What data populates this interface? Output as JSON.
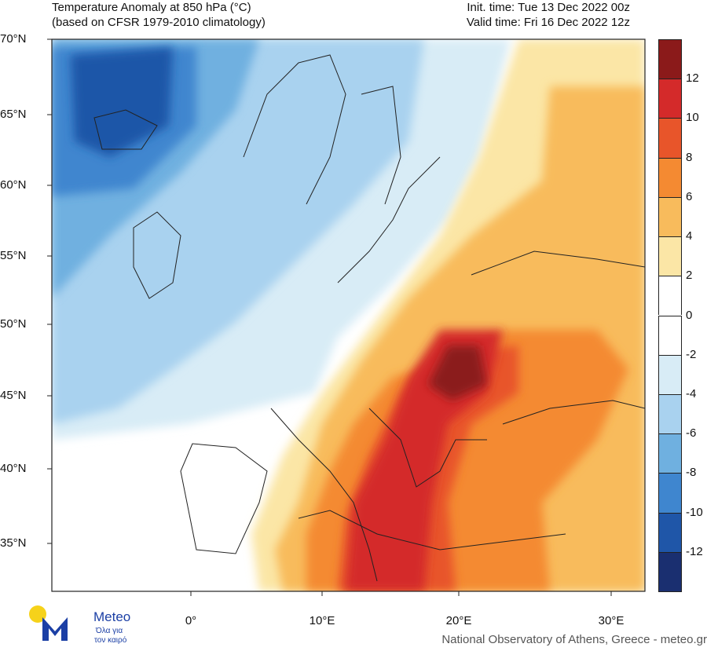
{
  "header": {
    "title_line1": "Temperature Anomaly at 850 hPa (°C)",
    "title_line2": "(based on CFSR 1979-2010 climatology)",
    "init_time": "Init. time: Tue 13 Dec 2022 00z",
    "valid_time": "Valid time: Fri 16 Dec 2022 12z"
  },
  "map": {
    "lat_labels": [
      "70°N",
      "65°N",
      "60°N",
      "55°N",
      "50°N",
      "45°N",
      "40°N",
      "35°N"
    ],
    "lon_labels": [
      "0°",
      "10°E",
      "20°E",
      "30°E"
    ]
  },
  "colorbar": {
    "labels": [
      "12",
      "10",
      "8",
      "6",
      "4",
      "2",
      "0",
      "-2",
      "-4",
      "-6",
      "-8",
      "-10",
      "-12"
    ],
    "colors": [
      "#8b1a1a",
      "#d42a2a",
      "#e8552a",
      "#f48a32",
      "#f8bb5c",
      "#fbe6a6",
      "#ffffff",
      "#ffffff",
      "#d8ecf6",
      "#a9d2ef",
      "#6fb0e0",
      "#3f86cf",
      "#1f56a8",
      "#1a2f70"
    ]
  },
  "logo": {
    "brand": "Meteo",
    "tagline_1": "Όλα για",
    "tagline_2": "τον καιρό"
  },
  "footer": "National Observatory of Athens, Greece - meteo.gr"
}
